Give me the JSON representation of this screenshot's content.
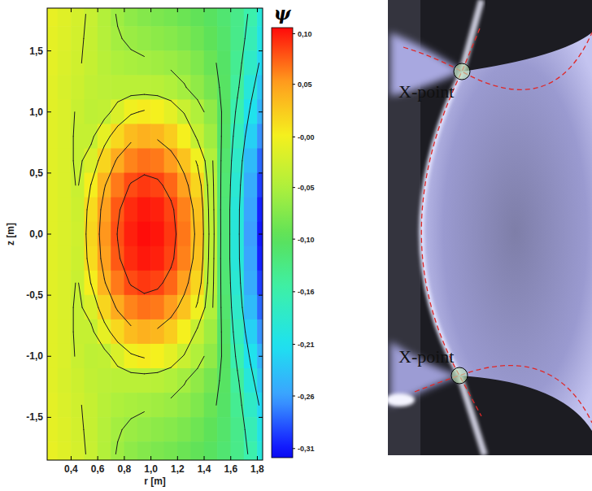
{
  "chart_data": {
    "type": "contour",
    "x_label": "r [m]",
    "y_label": "z [m]",
    "xlim": [
      0.22,
      1.84
    ],
    "ylim": [
      -1.85,
      1.85
    ],
    "xticks": [
      {
        "value": 0.4,
        "label": "0,4"
      },
      {
        "value": 0.6,
        "label": "0,6"
      },
      {
        "value": 0.8,
        "label": "0,8"
      },
      {
        "value": 1.0,
        "label": "1,0"
      },
      {
        "value": 1.2,
        "label": "1,2"
      },
      {
        "value": 1.4,
        "label": "1,4"
      },
      {
        "value": 1.6,
        "label": "1,6"
      },
      {
        "value": 1.8,
        "label": "1,8"
      }
    ],
    "yticks": [
      {
        "value": -1.5,
        "label": "-1,5"
      },
      {
        "value": -1.0,
        "label": "-1,0"
      },
      {
        "value": -0.5,
        "label": "-0,5"
      },
      {
        "value": 0.0,
        "label": "0,0"
      },
      {
        "value": 0.5,
        "label": "0,5"
      },
      {
        "value": 1.0,
        "label": "1,0"
      },
      {
        "value": 1.5,
        "label": "1,5"
      }
    ],
    "r": [
      0.25,
      0.35,
      0.45,
      0.55,
      0.65,
      0.75,
      0.85,
      0.95,
      1.05,
      1.15,
      1.25,
      1.35,
      1.45,
      1.55,
      1.65,
      1.75,
      1.85
    ],
    "z": [
      1.8,
      1.6,
      1.4,
      1.2,
      1.0,
      0.8,
      0.6,
      0.4,
      0.2,
      0.0,
      -0.2,
      -0.4,
      -0.6,
      -0.8,
      -1.0,
      -1.2,
      -1.4,
      -1.6,
      -1.8
    ],
    "psi": [
      [
        -0.01,
        -0.016,
        -0.024,
        -0.034,
        -0.048,
        -0.062,
        -0.071,
        -0.077,
        -0.082,
        -0.086,
        -0.092,
        -0.098,
        -0.106,
        -0.117,
        -0.132,
        -0.155,
        -0.19
      ],
      [
        -0.012,
        -0.018,
        -0.026,
        -0.035,
        -0.047,
        -0.058,
        -0.064,
        -0.068,
        -0.072,
        -0.076,
        -0.082,
        -0.09,
        -0.1,
        -0.113,
        -0.133,
        -0.163,
        -0.2
      ],
      [
        -0.013,
        -0.02,
        -0.028,
        -0.035,
        -0.045,
        -0.052,
        -0.055,
        -0.057,
        -0.06,
        -0.064,
        -0.07,
        -0.08,
        -0.093,
        -0.11,
        -0.138,
        -0.175,
        -0.215
      ],
      [
        -0.015,
        -0.022,
        -0.03,
        -0.038,
        -0.042,
        -0.043,
        -0.043,
        -0.043,
        -0.045,
        -0.05,
        -0.058,
        -0.07,
        -0.085,
        -0.108,
        -0.145,
        -0.19,
        -0.23
      ],
      [
        -0.015,
        -0.02,
        -0.033,
        -0.04,
        -0.038,
        -0.021,
        -0.004,
        0.003,
        0.0,
        -0.013,
        -0.032,
        -0.05,
        -0.07,
        -0.107,
        -0.157,
        -0.205,
        -0.245
      ],
      [
        -0.015,
        -0.02,
        -0.035,
        -0.035,
        -0.011,
        0.015,
        0.033,
        0.04,
        0.036,
        0.023,
        0.0,
        -0.035,
        -0.06,
        -0.11,
        -0.168,
        -0.222,
        -0.265
      ],
      [
        -0.015,
        -0.02,
        -0.035,
        -0.02,
        0.017,
        0.044,
        0.061,
        0.068,
        0.065,
        0.052,
        0.029,
        -0.004,
        -0.05,
        -0.115,
        -0.178,
        -0.238,
        -0.28
      ],
      [
        -0.015,
        -0.02,
        -0.032,
        0.001,
        0.038,
        0.065,
        0.082,
        0.089,
        0.085,
        0.072,
        0.05,
        0.017,
        -0.045,
        -0.118,
        -0.185,
        -0.25,
        -0.295
      ],
      [
        -0.015,
        -0.02,
        -0.03,
        0.013,
        0.05,
        0.077,
        0.094,
        0.101,
        0.098,
        0.085,
        0.062,
        0.029,
        -0.042,
        -0.12,
        -0.19,
        -0.255,
        -0.305
      ],
      [
        -0.015,
        -0.02,
        -0.028,
        0.017,
        0.054,
        0.081,
        0.098,
        0.105,
        0.102,
        0.089,
        0.066,
        0.033,
        -0.04,
        -0.12,
        -0.19,
        -0.26,
        -0.31
      ],
      [
        -0.015,
        -0.02,
        -0.03,
        0.013,
        0.05,
        0.077,
        0.094,
        0.101,
        0.098,
        0.085,
        0.062,
        0.029,
        -0.042,
        -0.12,
        -0.19,
        -0.255,
        -0.305
      ],
      [
        -0.015,
        -0.02,
        -0.032,
        0.001,
        0.038,
        0.065,
        0.082,
        0.089,
        0.085,
        0.072,
        0.05,
        0.017,
        -0.045,
        -0.118,
        -0.185,
        -0.25,
        -0.295
      ],
      [
        -0.015,
        -0.02,
        -0.035,
        -0.02,
        0.017,
        0.044,
        0.061,
        0.068,
        0.065,
        0.052,
        0.029,
        -0.004,
        -0.05,
        -0.115,
        -0.178,
        -0.238,
        -0.28
      ],
      [
        -0.015,
        -0.02,
        -0.035,
        -0.035,
        -0.011,
        0.015,
        0.033,
        0.04,
        0.036,
        0.023,
        0.0,
        -0.035,
        -0.06,
        -0.11,
        -0.168,
        -0.222,
        -0.265
      ],
      [
        -0.015,
        -0.02,
        -0.033,
        -0.04,
        -0.038,
        -0.021,
        -0.004,
        0.003,
        0.0,
        -0.013,
        -0.032,
        -0.05,
        -0.07,
        -0.107,
        -0.157,
        -0.205,
        -0.245
      ],
      [
        -0.015,
        -0.022,
        -0.03,
        -0.038,
        -0.042,
        -0.043,
        -0.043,
        -0.043,
        -0.045,
        -0.05,
        -0.058,
        -0.07,
        -0.085,
        -0.108,
        -0.145,
        -0.19,
        -0.23
      ],
      [
        -0.013,
        -0.02,
        -0.028,
        -0.035,
        -0.045,
        -0.052,
        -0.055,
        -0.057,
        -0.06,
        -0.064,
        -0.07,
        -0.08,
        -0.093,
        -0.11,
        -0.138,
        -0.175,
        -0.215
      ],
      [
        -0.012,
        -0.018,
        -0.026,
        -0.035,
        -0.047,
        -0.058,
        -0.064,
        -0.068,
        -0.072,
        -0.076,
        -0.082,
        -0.09,
        -0.1,
        -0.113,
        -0.133,
        -0.163,
        -0.2
      ],
      [
        -0.01,
        -0.016,
        -0.024,
        -0.034,
        -0.048,
        -0.062,
        -0.071,
        -0.077,
        -0.082,
        -0.086,
        -0.092,
        -0.098,
        -0.106,
        -0.117,
        -0.132,
        -0.155,
        -0.19
      ]
    ],
    "contour_levels": [
      0.08,
      0.04,
      0.0,
      -0.03,
      -0.06,
      -0.1,
      -0.15,
      -0.2
    ],
    "colorbar": {
      "title": "ψ",
      "range": [
        -0.319,
        0.106
      ],
      "ticks": [
        {
          "value": 0.1,
          "label": "0,10"
        },
        {
          "value": 0.05,
          "label": "0,05"
        },
        {
          "value": -0.002,
          "label": "-0,00"
        },
        {
          "value": -0.052,
          "label": "-0,05"
        },
        {
          "value": -0.103,
          "label": "-0,10"
        },
        {
          "value": -0.155,
          "label": "-0,16"
        },
        {
          "value": -0.207,
          "label": "-0,21"
        },
        {
          "value": -0.258,
          "label": "-0,26"
        },
        {
          "value": -0.31,
          "label": "-0,31"
        }
      ]
    }
  },
  "photo": {
    "annotations": [
      {
        "label": "X-point"
      },
      {
        "label": "X-point"
      }
    ]
  }
}
